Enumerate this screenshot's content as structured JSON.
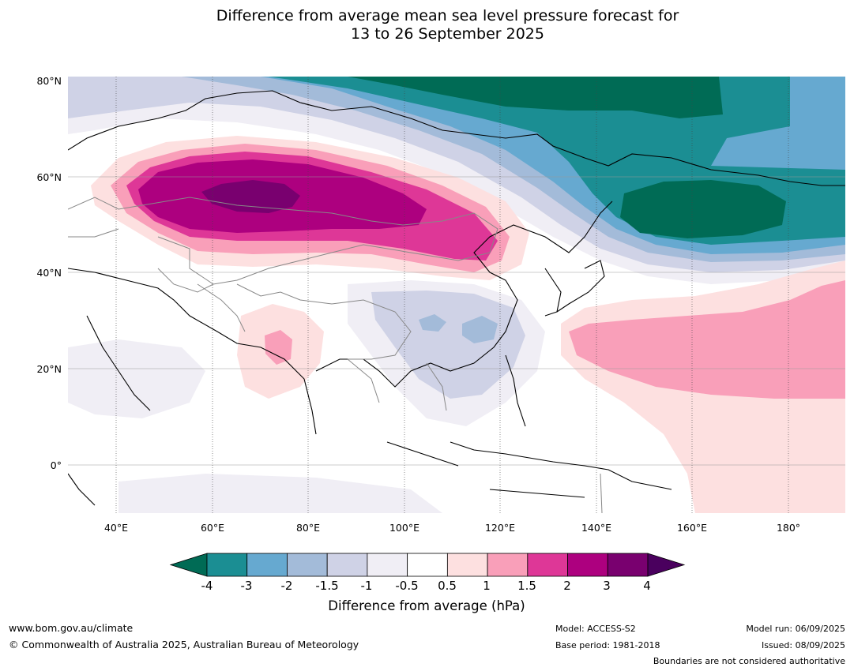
{
  "title": {
    "line1": "Difference from average mean sea level pressure forecast for",
    "line2": "13 to 26 September 2025"
  },
  "map": {
    "lat_labels": [
      "80°N",
      "60°N",
      "40°N",
      "20°N",
      "0°"
    ],
    "lon_labels": [
      "40°E",
      "60°E",
      "80°E",
      "100°E",
      "120°E",
      "140°E",
      "160°E",
      "180°"
    ],
    "extent": {
      "lon": [
        30,
        192
      ],
      "lat": [
        -10,
        80
      ]
    }
  },
  "colorbar": {
    "label": "Difference from average (hPa)",
    "ticks": [
      "-4",
      "-3",
      "-2",
      "-1.5",
      "-1",
      "-0.5",
      "0.5",
      "1",
      "1.5",
      "2",
      "3",
      "4"
    ],
    "colors": [
      "#006b55",
      "#1b8e93",
      "#66a9d0",
      "#a3bbd9",
      "#cfd2e6",
      "#f0eef5",
      "#ffffff",
      "#fde0e0",
      "#f99fb9",
      "#de3797",
      "#ad007f",
      "#79006f",
      "#4a005e"
    ]
  },
  "footer": {
    "website": "www.bom.gov.au/climate",
    "copyright": "© Commonwealth of Australia 2025, Australian Bureau of Meteorology",
    "model": "Model: ACCESS-S2",
    "base_period": "Base period: 1981-2018",
    "model_run": "Model run: 06/09/2025",
    "issued": "Issued: 08/09/2025",
    "disclaimer": "Boundaries are not considered authoritative"
  }
}
